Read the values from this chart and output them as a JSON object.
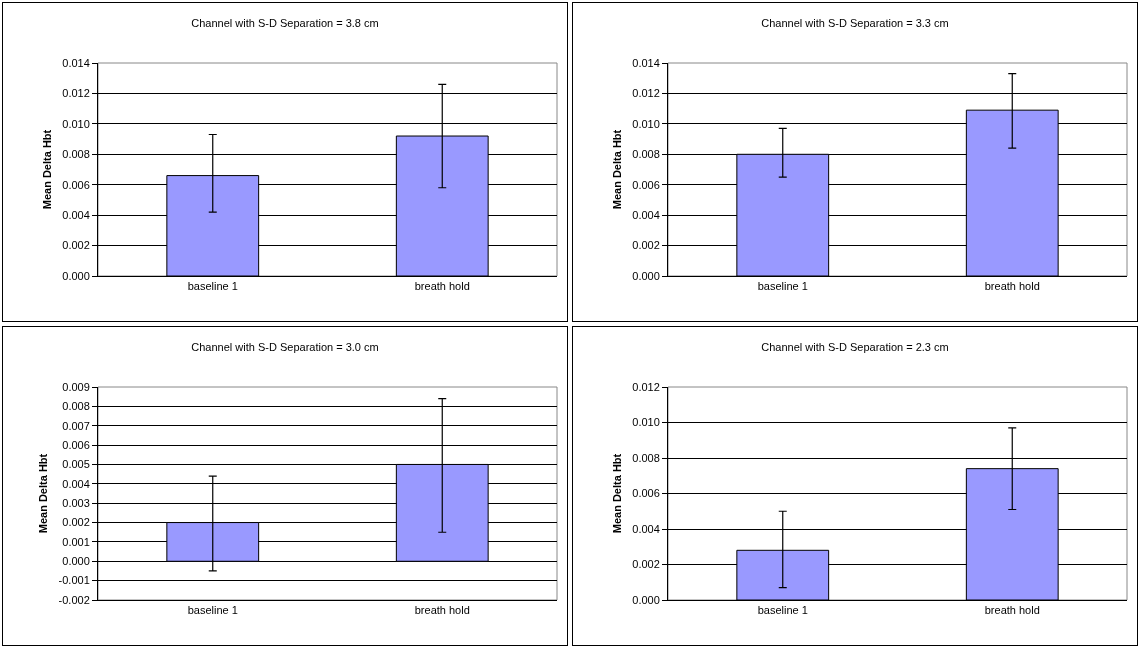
{
  "chart_data": [
    {
      "type": "bar",
      "title": "Channel with S-D Separation = 3.8 cm",
      "ylabel": "Mean Delta Hbt",
      "categories": [
        "baseline 1",
        "breath hold"
      ],
      "values": [
        0.0066,
        0.0092
      ],
      "color": "#9999ff",
      "errors": [
        [
          0.0042,
          0.0093
        ],
        [
          0.0058,
          0.0126
        ]
      ],
      "ylim": [
        0,
        0.014
      ],
      "yticks": [
        {
          "value": 0,
          "label": "0.000"
        },
        {
          "value": 0.002,
          "label": "0.002"
        },
        {
          "value": 0.004,
          "label": "0.004"
        },
        {
          "value": 0.006,
          "label": "0.006"
        },
        {
          "value": 0.008,
          "label": "0.008"
        },
        {
          "value": 0.01,
          "label": "0.010"
        },
        {
          "value": 0.012,
          "label": "0.012"
        },
        {
          "value": 0.014,
          "label": "0.014"
        }
      ],
      "grid": "y"
    },
    {
      "type": "bar",
      "title": "Channel with S-D Separation = 3.3 cm",
      "ylabel": "Mean Delta Hbt",
      "categories": [
        "baseline 1",
        "breath hold"
      ],
      "values": [
        0.008,
        0.0109
      ],
      "color": "#9999ff",
      "errors": [
        [
          0.0065,
          0.0097
        ],
        [
          0.0084,
          0.0133
        ]
      ],
      "ylim": [
        0,
        0.014
      ],
      "yticks": [
        {
          "value": 0,
          "label": "0.000"
        },
        {
          "value": 0.002,
          "label": "0.002"
        },
        {
          "value": 0.004,
          "label": "0.004"
        },
        {
          "value": 0.006,
          "label": "0.006"
        },
        {
          "value": 0.008,
          "label": "0.008"
        },
        {
          "value": 0.01,
          "label": "0.010"
        },
        {
          "value": 0.012,
          "label": "0.012"
        },
        {
          "value": 0.014,
          "label": "0.014"
        }
      ],
      "grid": "y"
    },
    {
      "type": "bar",
      "title": "Channel with S-D Separation = 3.0 cm",
      "ylabel": "Mean Delta Hbt",
      "categories": [
        "baseline 1",
        "breath hold"
      ],
      "values": [
        0.002,
        0.005
      ],
      "color": "#9999ff",
      "errors": [
        [
          -0.0005,
          0.0044
        ],
        [
          0.0015,
          0.0084
        ]
      ],
      "ylim": [
        -0.002,
        0.009
      ],
      "yticks": [
        {
          "value": -0.002,
          "label": "-0.002"
        },
        {
          "value": -0.001,
          "label": "-0.001"
        },
        {
          "value": 0,
          "label": "0.000"
        },
        {
          "value": 0.001,
          "label": "0.001"
        },
        {
          "value": 0.002,
          "label": "0.002"
        },
        {
          "value": 0.003,
          "label": "0.003"
        },
        {
          "value": 0.004,
          "label": "0.004"
        },
        {
          "value": 0.005,
          "label": "0.005"
        },
        {
          "value": 0.006,
          "label": "0.006"
        },
        {
          "value": 0.007,
          "label": "0.007"
        },
        {
          "value": 0.008,
          "label": "0.008"
        },
        {
          "value": 0.009,
          "label": "0.009"
        }
      ],
      "grid": "y"
    },
    {
      "type": "bar",
      "title": "Channel with S-D Separation = 2.3 cm",
      "ylabel": "Mean Delta Hbt",
      "categories": [
        "baseline 1",
        "breath hold"
      ],
      "values": [
        0.0028,
        0.0074
      ],
      "color": "#9999ff",
      "errors": [
        [
          0.0007,
          0.005
        ],
        [
          0.0051,
          0.0097
        ]
      ],
      "ylim": [
        0,
        0.012
      ],
      "yticks": [
        {
          "value": 0,
          "label": "0.000"
        },
        {
          "value": 0.002,
          "label": "0.002"
        },
        {
          "value": 0.004,
          "label": "0.004"
        },
        {
          "value": 0.006,
          "label": "0.006"
        },
        {
          "value": 0.008,
          "label": "0.008"
        },
        {
          "value": 0.01,
          "label": "0.010"
        },
        {
          "value": 0.012,
          "label": "0.012"
        }
      ],
      "grid": "y"
    }
  ]
}
